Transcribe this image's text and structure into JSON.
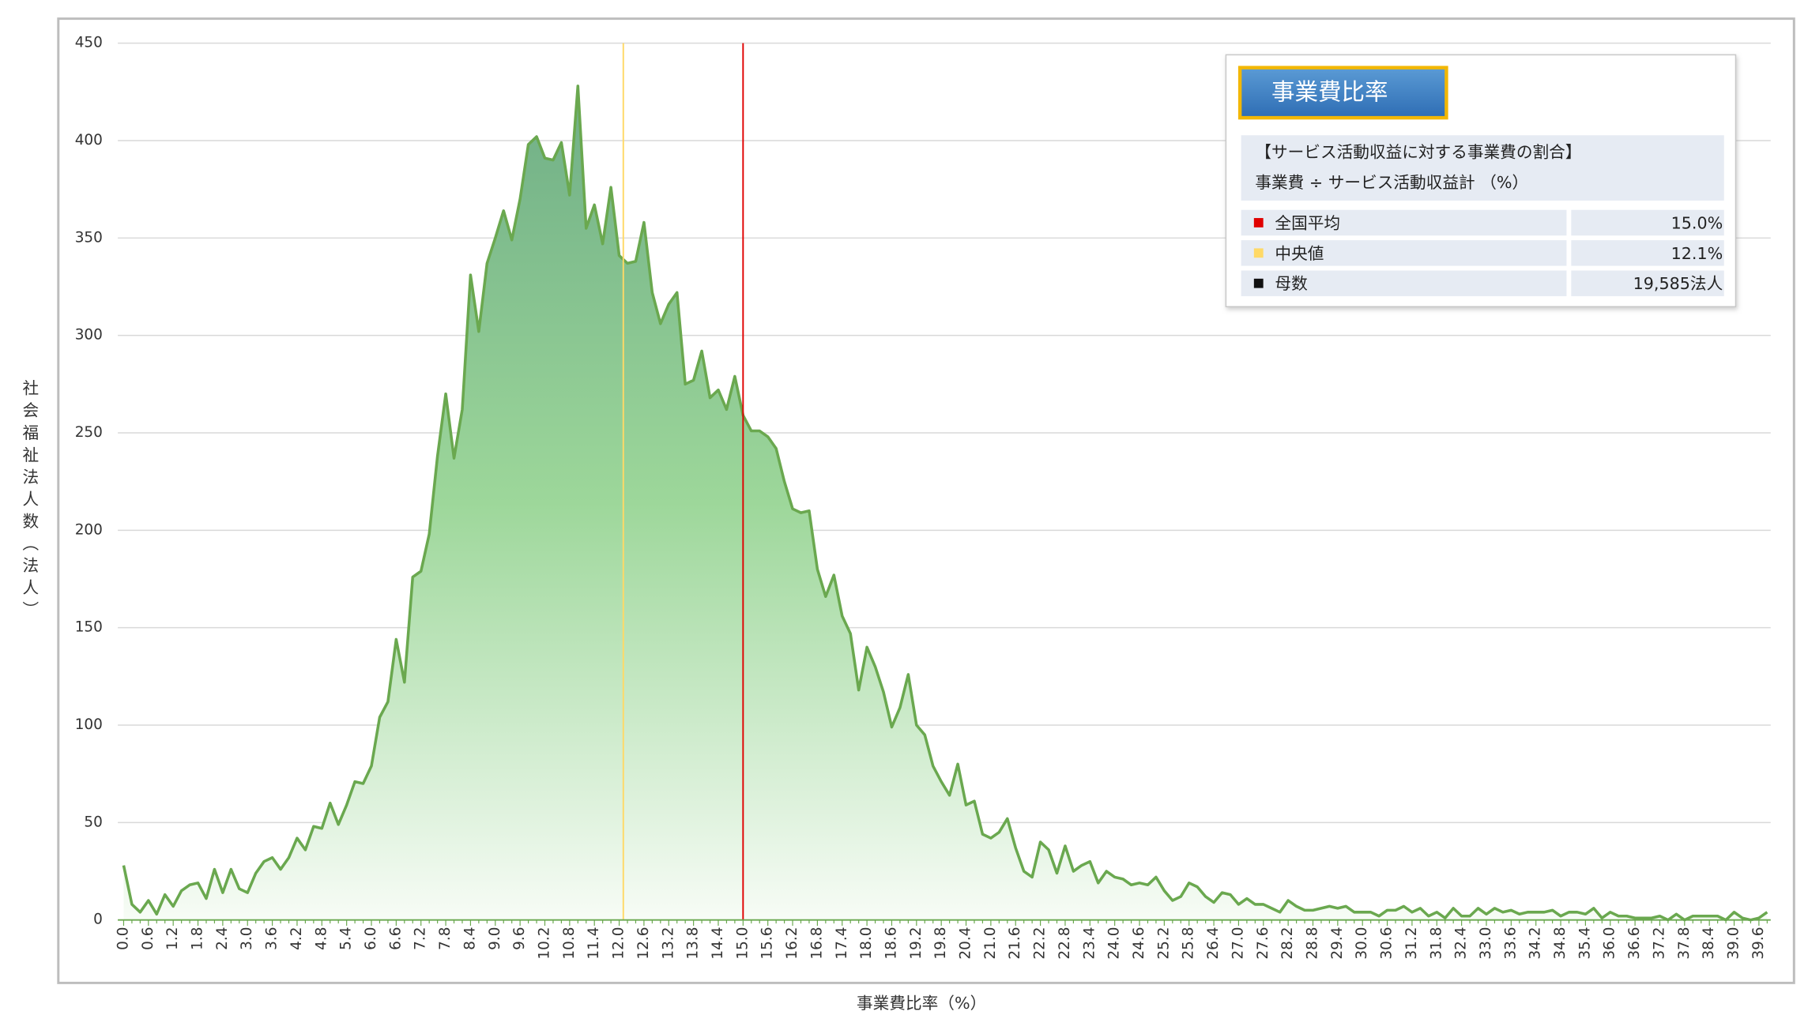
{
  "chart_data": {
    "type": "area",
    "xlabel": "事業費比率（%）",
    "ylabel": "社会福祉法人数（法人）",
    "categories": [
      "0.0",
      null,
      null,
      "0.6",
      null,
      null,
      "1.2",
      null,
      null,
      "1.8",
      null,
      null,
      "2.4",
      null,
      null,
      "3.0",
      null,
      null,
      "3.6",
      null,
      null,
      "4.2",
      null,
      null,
      "4.8",
      null,
      null,
      "5.4",
      null,
      null,
      "6.0",
      null,
      null,
      "6.6",
      null,
      null,
      "7.2",
      null,
      null,
      "7.8",
      null,
      null,
      "8.4",
      null,
      null,
      "9.0",
      null,
      null,
      "9.6",
      null,
      null,
      "10.2",
      null,
      null,
      "10.8",
      null,
      null,
      "11.4",
      null,
      null,
      "12.0",
      null,
      null,
      "12.6",
      null,
      null,
      "13.2",
      null,
      null,
      "13.8",
      null,
      null,
      "14.4",
      null,
      null,
      "15.0",
      null,
      null,
      "15.6",
      null,
      null,
      "16.2",
      null,
      null,
      "16.8",
      null,
      null,
      "17.4",
      null,
      null,
      "18.0",
      null,
      null,
      "18.6",
      null,
      null,
      "19.2",
      null,
      null,
      "19.8",
      null,
      null,
      "20.4",
      null,
      null,
      "21.0",
      null,
      null,
      "21.6",
      null,
      null,
      "22.2",
      null,
      null,
      "22.8",
      null,
      null,
      "23.4",
      null,
      null,
      "24.0",
      null,
      null,
      "24.6",
      null,
      null,
      "25.2",
      null,
      null,
      "25.8",
      null,
      null,
      "26.4",
      null,
      null,
      "27.0",
      null,
      null,
      "27.6",
      null,
      null,
      "28.2",
      null,
      null,
      "28.8",
      null,
      null,
      "29.4",
      null,
      null,
      "30.0",
      null,
      null,
      "30.6",
      null,
      null,
      "31.2",
      null,
      null,
      "31.8",
      null,
      null,
      "32.4",
      null,
      null,
      "33.0",
      null,
      null,
      "33.6",
      null,
      null,
      "34.2",
      null,
      null,
      "34.8",
      null,
      null,
      "35.4",
      null,
      null,
      "36.0",
      null,
      null,
      "36.6",
      null,
      null,
      "37.2",
      null,
      null,
      "37.8",
      null,
      null,
      "38.4",
      null,
      null,
      "39.0",
      null,
      null,
      "39.6",
      null
    ],
    "values": [
      28,
      8,
      4,
      10,
      3,
      13,
      7,
      15,
      18,
      19,
      11,
      26,
      14,
      26,
      16,
      14,
      24,
      30,
      32,
      26,
      32,
      42,
      36,
      48,
      47,
      60,
      49,
      59,
      71,
      70,
      79,
      104,
      112,
      144,
      122,
      176,
      179,
      198,
      238,
      270,
      237,
      262,
      331,
      302,
      337,
      350,
      364,
      349,
      370,
      398,
      402,
      391,
      390,
      399,
      372,
      428,
      355,
      367,
      347,
      376,
      341,
      337,
      338,
      358,
      322,
      306,
      316,
      322,
      275,
      277,
      292,
      268,
      272,
      262,
      279,
      259,
      251,
      251,
      248,
      242,
      225,
      211,
      209,
      210,
      180,
      166,
      177,
      156,
      147,
      118,
      140,
      130,
      117,
      99,
      109,
      126,
      100,
      95,
      79,
      71,
      64,
      80,
      59,
      61,
      44,
      42,
      45,
      52,
      37,
      25,
      22,
      40,
      36,
      24,
      38,
      25,
      28,
      30,
      19,
      25,
      22,
      21,
      18,
      19,
      18,
      22,
      15,
      10,
      12,
      19,
      17,
      12,
      9,
      14,
      13,
      8,
      11,
      8,
      8,
      6,
      4,
      10,
      7,
      5,
      5,
      6,
      7,
      6,
      7,
      4,
      4,
      4,
      2,
      5,
      5,
      7,
      4,
      6,
      2,
      4,
      1,
      6,
      2,
      2,
      6,
      3,
      6,
      4,
      5,
      3,
      4,
      4,
      4,
      5,
      2,
      4,
      4,
      3,
      6,
      1,
      4,
      2,
      2,
      1,
      1,
      1,
      2,
      0,
      3,
      0,
      2,
      2,
      2,
      2,
      0,
      4,
      1,
      0,
      1,
      4
    ],
    "color": "#6aa84f",
    "ylim": [
      0,
      450
    ],
    "yticks": [
      0,
      50,
      100,
      150,
      200,
      250,
      300,
      350,
      400,
      450
    ],
    "grid": true,
    "reference_lines": [
      {
        "name": "全国平均",
        "value": 15.0,
        "value_label": "15.0%",
        "color": "#e00000"
      },
      {
        "name": "中央値",
        "value": 12.1,
        "value_label": "12.1%",
        "color": "#ffd966"
      }
    ],
    "info": {
      "title": "事業費比率",
      "description": "【サービス活動収益に対する事業費の割合】",
      "formula": "事業費 ÷ サービス活動収益計 （%）",
      "population": {
        "name": "母数",
        "value": 19585,
        "value_label": "19,585法人",
        "color": "#111111"
      }
    }
  }
}
